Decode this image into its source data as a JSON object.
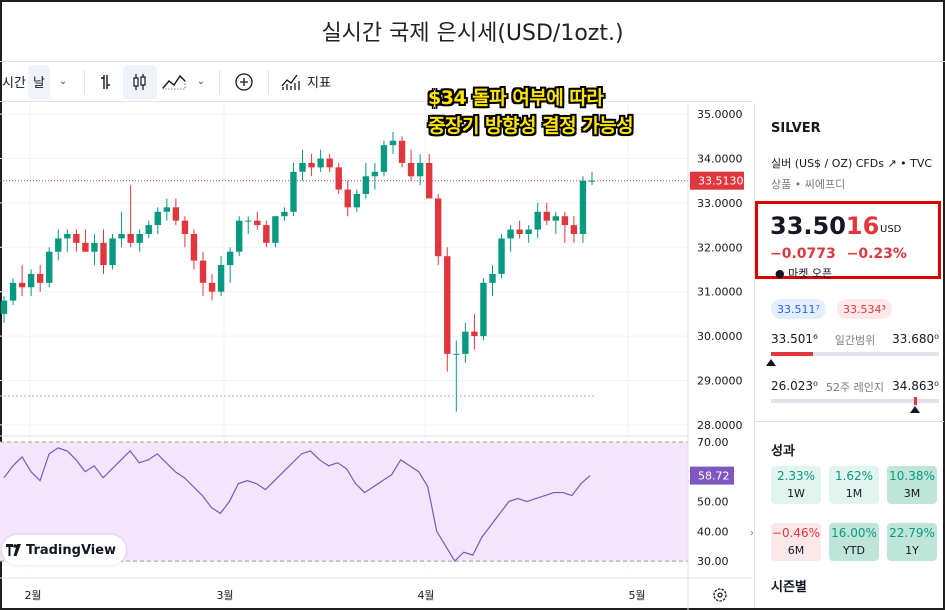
{
  "title": "실시간 국제 은시세(USD/1ozt.)",
  "toolbar": {
    "interval_prefix": "시간",
    "interval": "날",
    "indicators_label": "지표"
  },
  "annotation": {
    "line1": "$34 돌파 여부에 따라",
    "line2": "중장기 방향성 결정 가능성"
  },
  "logo": {
    "text": "TradingView"
  },
  "chart_data": {
    "type": "candlestick",
    "price_axis": {
      "ticks": [
        "35.0000",
        "34.0000",
        "33.0000",
        "32.0000",
        "31.0000",
        "30.0000",
        "29.0000",
        "28.0000"
      ],
      "range": [
        27.75,
        35.25
      ]
    },
    "time_axis": {
      "ticks": [
        "2월",
        "3월",
        "4월",
        "5월"
      ]
    },
    "current_price_label": "33.5130",
    "reference_line": 28.65,
    "candles": [
      [
        30.5,
        30.9,
        30.3,
        30.8
      ],
      [
        30.8,
        31.3,
        30.7,
        31.2
      ],
      [
        31.2,
        31.6,
        30.9,
        31.1
      ],
      [
        31.1,
        31.5,
        30.9,
        31.4
      ],
      [
        31.4,
        31.6,
        31.0,
        31.2
      ],
      [
        31.2,
        32.0,
        31.1,
        31.9
      ],
      [
        31.9,
        32.4,
        31.7,
        32.2
      ],
      [
        32.2,
        32.4,
        31.9,
        32.3
      ],
      [
        32.3,
        32.4,
        31.9,
        32.1
      ],
      [
        32.1,
        32.4,
        31.9,
        31.9
      ],
      [
        31.9,
        32.3,
        31.6,
        32.1
      ],
      [
        32.1,
        32.4,
        31.4,
        31.6
      ],
      [
        31.6,
        32.3,
        31.5,
        32.2
      ],
      [
        32.2,
        32.8,
        32.0,
        32.3
      ],
      [
        32.3,
        33.4,
        32.0,
        32.1
      ],
      [
        32.1,
        32.4,
        31.9,
        32.3
      ],
      [
        32.3,
        32.6,
        32.2,
        32.5
      ],
      [
        32.5,
        32.9,
        32.3,
        32.8
      ],
      [
        32.8,
        33.1,
        32.6,
        32.9
      ],
      [
        32.9,
        33.1,
        32.5,
        32.6
      ],
      [
        32.6,
        32.7,
        32.0,
        32.3
      ],
      [
        32.3,
        32.4,
        31.5,
        31.7
      ],
      [
        31.7,
        31.9,
        30.9,
        31.2
      ],
      [
        31.2,
        31.4,
        30.8,
        31.0
      ],
      [
        31.0,
        31.8,
        30.9,
        31.6
      ],
      [
        31.6,
        32.0,
        31.2,
        31.9
      ],
      [
        31.9,
        32.7,
        31.8,
        32.6
      ],
      [
        32.6,
        32.7,
        32.3,
        32.6
      ],
      [
        32.6,
        32.8,
        32.4,
        32.5
      ],
      [
        32.5,
        32.6,
        32.0,
        32.1
      ],
      [
        32.1,
        32.7,
        32.0,
        32.7
      ],
      [
        32.7,
        32.9,
        32.6,
        32.8
      ],
      [
        32.8,
        33.9,
        32.7,
        33.7
      ],
      [
        33.7,
        34.2,
        33.5,
        33.9
      ],
      [
        33.9,
        34.1,
        33.6,
        33.8
      ],
      [
        33.8,
        34.2,
        33.7,
        34.0
      ],
      [
        34.0,
        34.1,
        33.7,
        33.8
      ],
      [
        33.8,
        33.9,
        33.2,
        33.3
      ],
      [
        33.3,
        33.5,
        32.7,
        32.9
      ],
      [
        32.9,
        33.3,
        32.8,
        33.2
      ],
      [
        33.2,
        33.9,
        33.1,
        33.6
      ],
      [
        33.6,
        33.9,
        33.3,
        33.7
      ],
      [
        33.7,
        34.4,
        33.6,
        34.3
      ],
      [
        34.3,
        34.6,
        34.1,
        34.4
      ],
      [
        34.4,
        34.5,
        33.8,
        33.9
      ],
      [
        33.9,
        34.2,
        33.5,
        33.6
      ],
      [
        33.6,
        34.1,
        33.4,
        33.9
      ],
      [
        33.9,
        34.1,
        33.1,
        33.1
      ],
      [
        33.1,
        33.2,
        31.6,
        31.8
      ],
      [
        31.8,
        32.0,
        29.2,
        29.6
      ],
      [
        29.6,
        29.9,
        28.3,
        29.6
      ],
      [
        29.6,
        30.3,
        29.4,
        30.1
      ],
      [
        30.1,
        30.5,
        29.7,
        30.0
      ],
      [
        30.0,
        31.3,
        29.9,
        31.2
      ],
      [
        31.2,
        31.6,
        30.9,
        31.4
      ],
      [
        31.4,
        32.3,
        31.3,
        32.2
      ],
      [
        32.2,
        32.5,
        31.9,
        32.4
      ],
      [
        32.4,
        32.6,
        32.2,
        32.3
      ],
      [
        32.3,
        32.5,
        32.1,
        32.4
      ],
      [
        32.4,
        33.0,
        32.2,
        32.8
      ],
      [
        32.8,
        33.0,
        32.5,
        32.6
      ],
      [
        32.6,
        32.8,
        32.3,
        32.7
      ],
      [
        32.7,
        32.8,
        32.1,
        32.5
      ],
      [
        32.5,
        32.7,
        32.1,
        32.3
      ],
      [
        32.3,
        33.6,
        32.1,
        33.5
      ],
      [
        33.5,
        33.7,
        33.4,
        33.5
      ]
    ],
    "rsi": {
      "axis_ticks": [
        "70.00",
        "60.00",
        "50.00",
        "40.00",
        "30.00"
      ],
      "range": [
        27,
        72
      ],
      "current_label": "58.72",
      "upper_band": 70,
      "lower_band": 30,
      "values": [
        58,
        62,
        65,
        60,
        57,
        66,
        68,
        67,
        64,
        60,
        62,
        58,
        61,
        64,
        67,
        63,
        64,
        66,
        63,
        60,
        58,
        55,
        52,
        48,
        46,
        50,
        56,
        57,
        56,
        54,
        57,
        60,
        63,
        66,
        67,
        64,
        62,
        63,
        61,
        56,
        53,
        55,
        57,
        59,
        64,
        62,
        60,
        55,
        40,
        35,
        30,
        33,
        32,
        38,
        42,
        46,
        50,
        51,
        50,
        51,
        52,
        53,
        53,
        52,
        56,
        58.7
      ]
    },
    "colors": {
      "up": "#089981",
      "down": "#e0373f",
      "rsi_line": "#7e57c2",
      "rsi_band_fill": "#f3e5fc"
    }
  },
  "sidebar": {
    "symbol": "SILVER",
    "description": "실버 (US$ / OZ) CFDs",
    "exchange": "TVC",
    "meta": "상품 • 씨에프디",
    "price_main": "33.50",
    "price_tail": "16",
    "price_unit": "USD",
    "change": "−0.0773",
    "change_pct": "−0.23%",
    "market_status": "● 마켓 오픈",
    "bid": "33.511⁷",
    "ask": "33.534³",
    "day_low": "33.501⁶",
    "day_label": "일간범위",
    "day_high": "33.680⁰",
    "day_fill": 0.25,
    "year_low": "26.023⁰",
    "year_label": "52주 레인지",
    "year_high": "34.863⁰",
    "year_position": 0.85,
    "performance_title": "성과",
    "performance": [
      {
        "value": "2.33%",
        "period": "1W",
        "tone": "up"
      },
      {
        "value": "1.62%",
        "period": "1M",
        "tone": "up"
      },
      {
        "value": "10.38%",
        "period": "3M",
        "tone": "up-strong"
      },
      {
        "value": "−0.46%",
        "period": "6M",
        "tone": "down"
      },
      {
        "value": "16.00%",
        "period": "YTD",
        "tone": "up-strong"
      },
      {
        "value": "22.79%",
        "period": "1Y",
        "tone": "up-strong"
      }
    ],
    "seasonal_title": "시즌별"
  }
}
